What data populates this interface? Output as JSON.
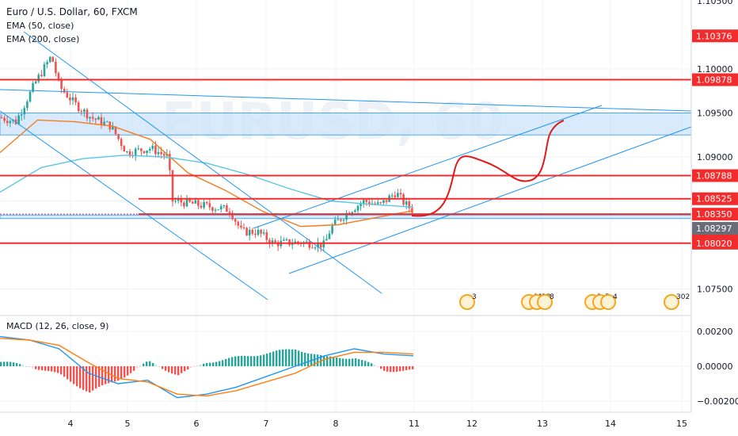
{
  "header": {
    "title": "Euro / U.S. Dollar, 60, FXCM",
    "ema50": "EMA (50, close)",
    "ema200": "EMA (200, close)",
    "macd": "MACD (12, 26, close, 9)",
    "watermark": "EURUSD, 60"
  },
  "colors": {
    "up_candle": "#26a69a",
    "down_candle": "#ef5350",
    "level_line": "#f22c2c",
    "trend_line": "#2196f3",
    "zone_fill": "#cfe6fb",
    "ema50": "#f57c1f",
    "ema200": "#5ac8e0",
    "macd_line": "#2196f3",
    "signal_line": "#ff7f0e"
  },
  "chart_data": [
    {
      "type": "candlestick",
      "y_ticks": [
        "1.10000",
        "1.09500",
        "1.09000",
        "1.08500",
        "1.08000",
        "1.07500"
      ],
      "x_ticks": [
        "4",
        "5",
        "6",
        "7",
        "8",
        "11",
        "12",
        "13",
        "14",
        "15"
      ],
      "price_labels": [
        {
          "text": "1.10376",
          "kind": "red"
        },
        {
          "text": "1.09878",
          "kind": "red"
        },
        {
          "text": "1.08788",
          "kind": "red"
        },
        {
          "text": "1.08525",
          "kind": "red"
        },
        {
          "text": "1.08350",
          "kind": "red"
        },
        {
          "text": "1.08350",
          "kind": "red"
        },
        {
          "text": "1.08297",
          "kind": "gray"
        },
        {
          "text": "1.08020",
          "kind": "red"
        }
      ],
      "horizontal_levels": [
        1.09878,
        1.08788,
        1.08525,
        1.0835,
        1.0802
      ],
      "zones": [
        [
          1.0925,
          1.095
        ],
        [
          1.083,
          1.0834
        ]
      ],
      "series": [
        {
          "name": "EMA (50, close)",
          "values": [
            1.0905,
            1.0942,
            1.094,
            1.0935,
            1.092,
            1.0882,
            1.0862,
            1.0838,
            1.0821,
            1.0823,
            1.0831,
            1.0839
          ]
        },
        {
          "name": "EMA (200, close)",
          "values": [
            1.086,
            1.0888,
            1.0898,
            1.0902,
            1.09,
            1.0893,
            1.088,
            1.0864,
            1.085,
            1.0846,
            1.0843
          ]
        }
      ],
      "events": [
        "3",
        "11",
        "22",
        "8",
        "2",
        "5",
        "4",
        "302"
      ]
    },
    {
      "type": "line",
      "title": "MACD (12, 26, close, 9)",
      "y_ticks": [
        "0.00200",
        "0.00000",
        "−0.00200"
      ],
      "series": [
        {
          "name": "MACD",
          "values": [
            0.0017,
            0.0015,
            0.001,
            -0.0004,
            -0.001,
            -0.0008,
            -0.0018,
            -0.0016,
            -0.0012,
            -0.0006,
            0.0,
            0.0006,
            0.001,
            0.0007,
            0.0006
          ]
        },
        {
          "name": "Signal",
          "values": [
            0.0016,
            0.0015,
            0.0012,
            0.0002,
            -0.0007,
            -0.0009,
            -0.0016,
            -0.0017,
            -0.0014,
            -0.0009,
            -0.0004,
            0.0004,
            0.0008,
            0.0008,
            0.0007
          ]
        }
      ]
    }
  ]
}
